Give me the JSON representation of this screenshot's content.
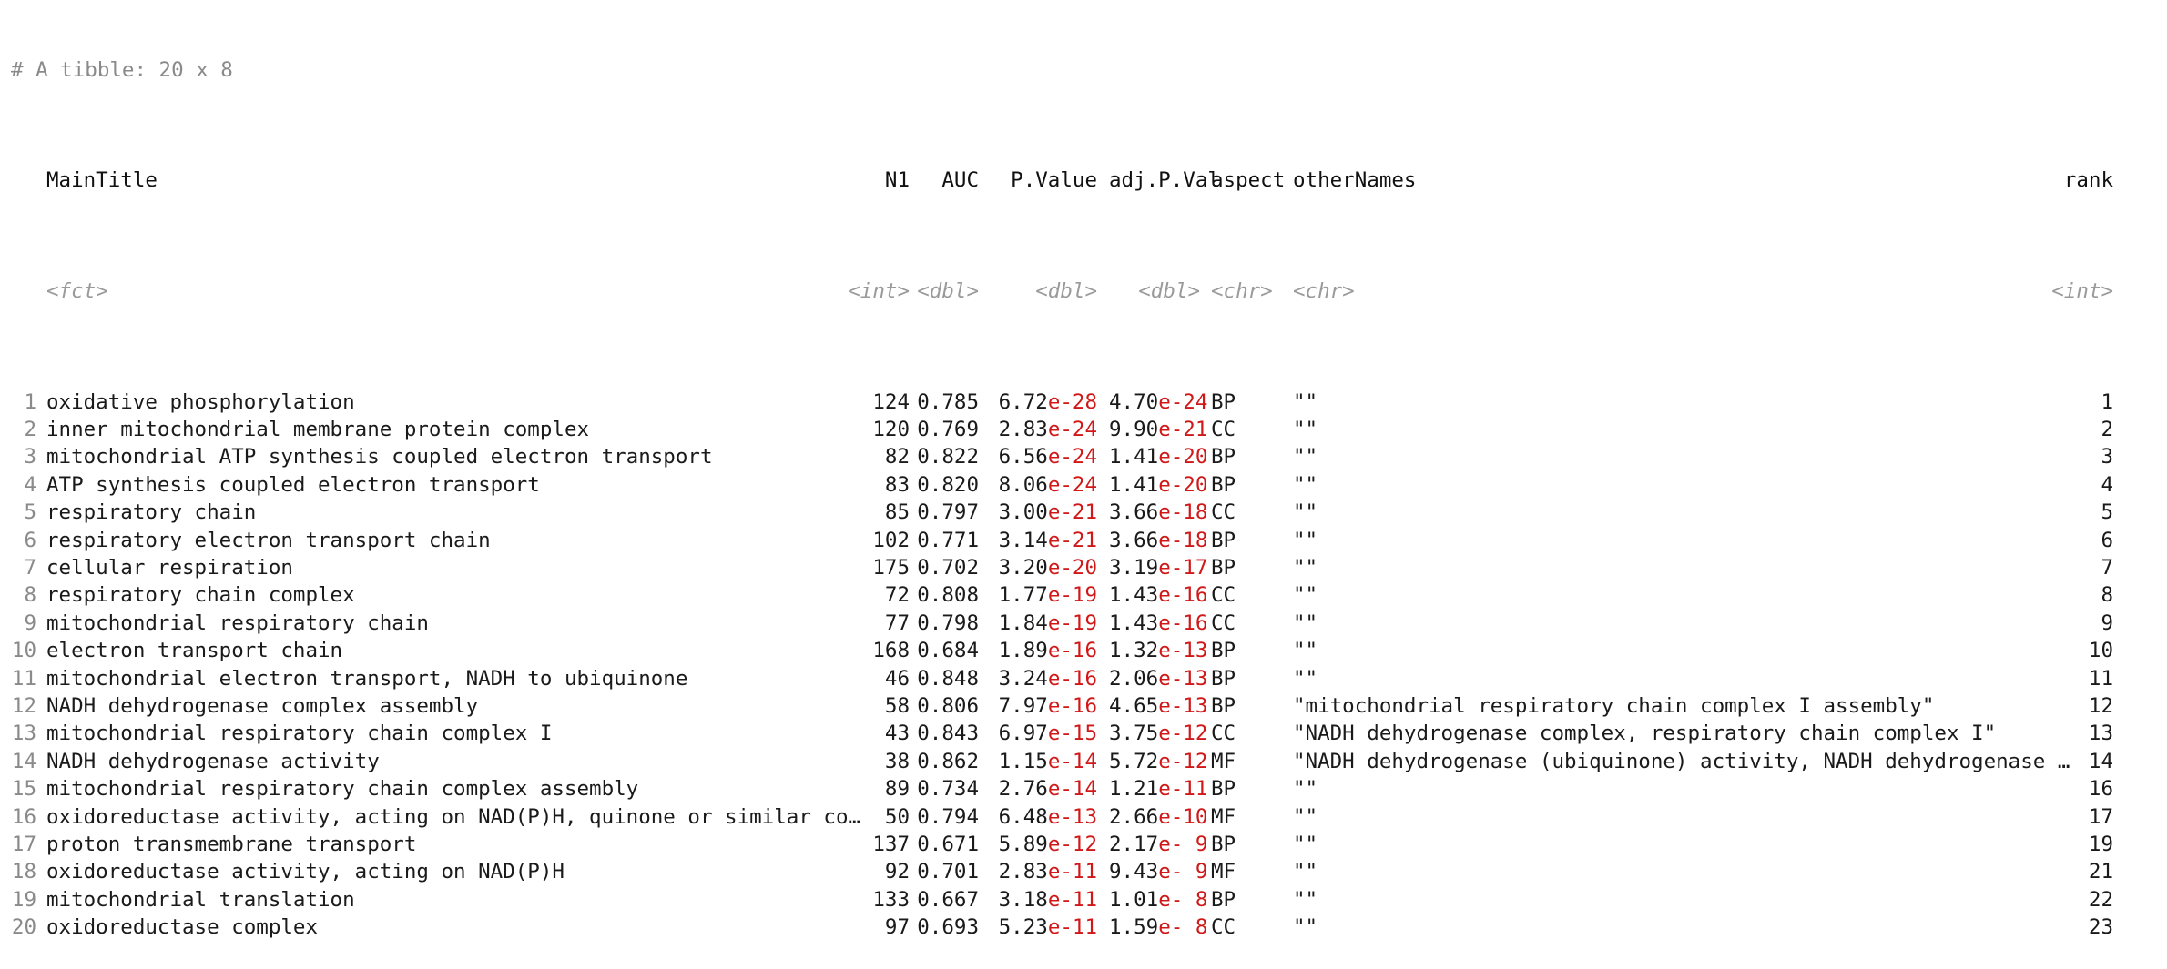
{
  "comment": "# A tibble: 20 x 8",
  "columns": [
    {
      "key": "MainTitle",
      "label": "MainTitle",
      "type": "<fct>"
    },
    {
      "key": "N1",
      "label": "N1",
      "type": "<int>"
    },
    {
      "key": "AUC",
      "label": "AUC",
      "type": "<dbl>"
    },
    {
      "key": "P.Value",
      "label": "P.Value",
      "type": "<dbl>"
    },
    {
      "key": "adj.P.Val",
      "label": "adj.P.Val",
      "type": "<dbl>"
    },
    {
      "key": "aspect",
      "label": "aspect",
      "type": "<chr>"
    },
    {
      "key": "otherNames",
      "label": "otherNames",
      "type": "<chr>"
    },
    {
      "key": "rank",
      "label": "rank",
      "type": "<int>"
    }
  ],
  "rows": [
    {
      "idx": "1",
      "title": "oxidative phosphorylation",
      "n1": "124",
      "auc": "0.785",
      "pv_m": "6.72",
      "pv_e": "e-28",
      "adj_m": "4.70",
      "adj_e": "e-24",
      "aspect": "BP",
      "other": "\"\"",
      "rank": "1"
    },
    {
      "idx": "2",
      "title": "inner mitochondrial membrane protein complex",
      "n1": "120",
      "auc": "0.769",
      "pv_m": "2.83",
      "pv_e": "e-24",
      "adj_m": "9.90",
      "adj_e": "e-21",
      "aspect": "CC",
      "other": "\"\"",
      "rank": "2"
    },
    {
      "idx": "3",
      "title": "mitochondrial ATP synthesis coupled electron transport",
      "n1": "82",
      "auc": "0.822",
      "pv_m": "6.56",
      "pv_e": "e-24",
      "adj_m": "1.41",
      "adj_e": "e-20",
      "aspect": "BP",
      "other": "\"\"",
      "rank": "3"
    },
    {
      "idx": "4",
      "title": "ATP synthesis coupled electron transport",
      "n1": "83",
      "auc": "0.820",
      "pv_m": "8.06",
      "pv_e": "e-24",
      "adj_m": "1.41",
      "adj_e": "e-20",
      "aspect": "BP",
      "other": "\"\"",
      "rank": "4"
    },
    {
      "idx": "5",
      "title": "respiratory chain",
      "n1": "85",
      "auc": "0.797",
      "pv_m": "3.00",
      "pv_e": "e-21",
      "adj_m": "3.66",
      "adj_e": "e-18",
      "aspect": "CC",
      "other": "\"\"",
      "rank": "5"
    },
    {
      "idx": "6",
      "title": "respiratory electron transport chain",
      "n1": "102",
      "auc": "0.771",
      "pv_m": "3.14",
      "pv_e": "e-21",
      "adj_m": "3.66",
      "adj_e": "e-18",
      "aspect": "BP",
      "other": "\"\"",
      "rank": "6"
    },
    {
      "idx": "7",
      "title": "cellular respiration",
      "n1": "175",
      "auc": "0.702",
      "pv_m": "3.20",
      "pv_e": "e-20",
      "adj_m": "3.19",
      "adj_e": "e-17",
      "aspect": "BP",
      "other": "\"\"",
      "rank": "7"
    },
    {
      "idx": "8",
      "title": "respiratory chain complex",
      "n1": "72",
      "auc": "0.808",
      "pv_m": "1.77",
      "pv_e": "e-19",
      "adj_m": "1.43",
      "adj_e": "e-16",
      "aspect": "CC",
      "other": "\"\"",
      "rank": "8"
    },
    {
      "idx": "9",
      "title": "mitochondrial respiratory chain",
      "n1": "77",
      "auc": "0.798",
      "pv_m": "1.84",
      "pv_e": "e-19",
      "adj_m": "1.43",
      "adj_e": "e-16",
      "aspect": "CC",
      "other": "\"\"",
      "rank": "9"
    },
    {
      "idx": "10",
      "title": "electron transport chain",
      "n1": "168",
      "auc": "0.684",
      "pv_m": "1.89",
      "pv_e": "e-16",
      "adj_m": "1.32",
      "adj_e": "e-13",
      "aspect": "BP",
      "other": "\"\"",
      "rank": "10"
    },
    {
      "idx": "11",
      "title": "mitochondrial electron transport, NADH to ubiquinone",
      "n1": "46",
      "auc": "0.848",
      "pv_m": "3.24",
      "pv_e": "e-16",
      "adj_m": "2.06",
      "adj_e": "e-13",
      "aspect": "BP",
      "other": "\"\"",
      "rank": "11"
    },
    {
      "idx": "12",
      "title": "NADH dehydrogenase complex assembly",
      "n1": "58",
      "auc": "0.806",
      "pv_m": "7.97",
      "pv_e": "e-16",
      "adj_m": "4.65",
      "adj_e": "e-13",
      "aspect": "BP",
      "other": "\"mitochondrial respiratory chain complex I assembly\"",
      "rank": "12"
    },
    {
      "idx": "13",
      "title": "mitochondrial respiratory chain complex I",
      "n1": "43",
      "auc": "0.843",
      "pv_m": "6.97",
      "pv_e": "e-15",
      "adj_m": "3.75",
      "adj_e": "e-12",
      "aspect": "CC",
      "other": "\"NADH dehydrogenase complex, respiratory chain complex I\"",
      "rank": "13"
    },
    {
      "idx": "14",
      "title": "NADH dehydrogenase activity",
      "n1": "38",
      "auc": "0.862",
      "pv_m": "1.15",
      "pv_e": "e-14",
      "adj_m": "5.72",
      "adj_e": "e-12",
      "aspect": "MF",
      "other": "\"NADH dehydrogenase (ubiquinone) activity, NADH dehydrogenase …",
      "rank": "14"
    },
    {
      "idx": "15",
      "title": "mitochondrial respiratory chain complex assembly",
      "n1": "89",
      "auc": "0.734",
      "pv_m": "2.76",
      "pv_e": "e-14",
      "adj_m": "1.21",
      "adj_e": "e-11",
      "aspect": "BP",
      "other": "\"\"",
      "rank": "16"
    },
    {
      "idx": "16",
      "title": "oxidoreductase activity, acting on NAD(P)H, quinone or similar co…",
      "n1": "50",
      "auc": "0.794",
      "pv_m": "6.48",
      "pv_e": "e-13",
      "adj_m": "2.66",
      "adj_e": "e-10",
      "aspect": "MF",
      "other": "\"\"",
      "rank": "17"
    },
    {
      "idx": "17",
      "title": "proton transmembrane transport",
      "n1": "137",
      "auc": "0.671",
      "pv_m": "5.89",
      "pv_e": "e-12",
      "adj_m": "2.17",
      "adj_e": "e- 9",
      "aspect": "BP",
      "other": "\"\"",
      "rank": "19"
    },
    {
      "idx": "18",
      "title": "oxidoreductase activity, acting on NAD(P)H",
      "n1": "92",
      "auc": "0.701",
      "pv_m": "2.83",
      "pv_e": "e-11",
      "adj_m": "9.43",
      "adj_e": "e- 9",
      "aspect": "MF",
      "other": "\"\"",
      "rank": "21"
    },
    {
      "idx": "19",
      "title": "mitochondrial translation",
      "n1": "133",
      "auc": "0.667",
      "pv_m": "3.18",
      "pv_e": "e-11",
      "adj_m": "1.01",
      "adj_e": "e- 8",
      "aspect": "BP",
      "other": "\"\"",
      "rank": "22"
    },
    {
      "idx": "20",
      "title": "oxidoreductase complex",
      "n1": "97",
      "auc": "0.693",
      "pv_m": "5.23",
      "pv_e": "e-11",
      "adj_m": "1.59",
      "adj_e": "e- 8",
      "aspect": "CC",
      "other": "\"\"",
      "rank": "23"
    }
  ]
}
